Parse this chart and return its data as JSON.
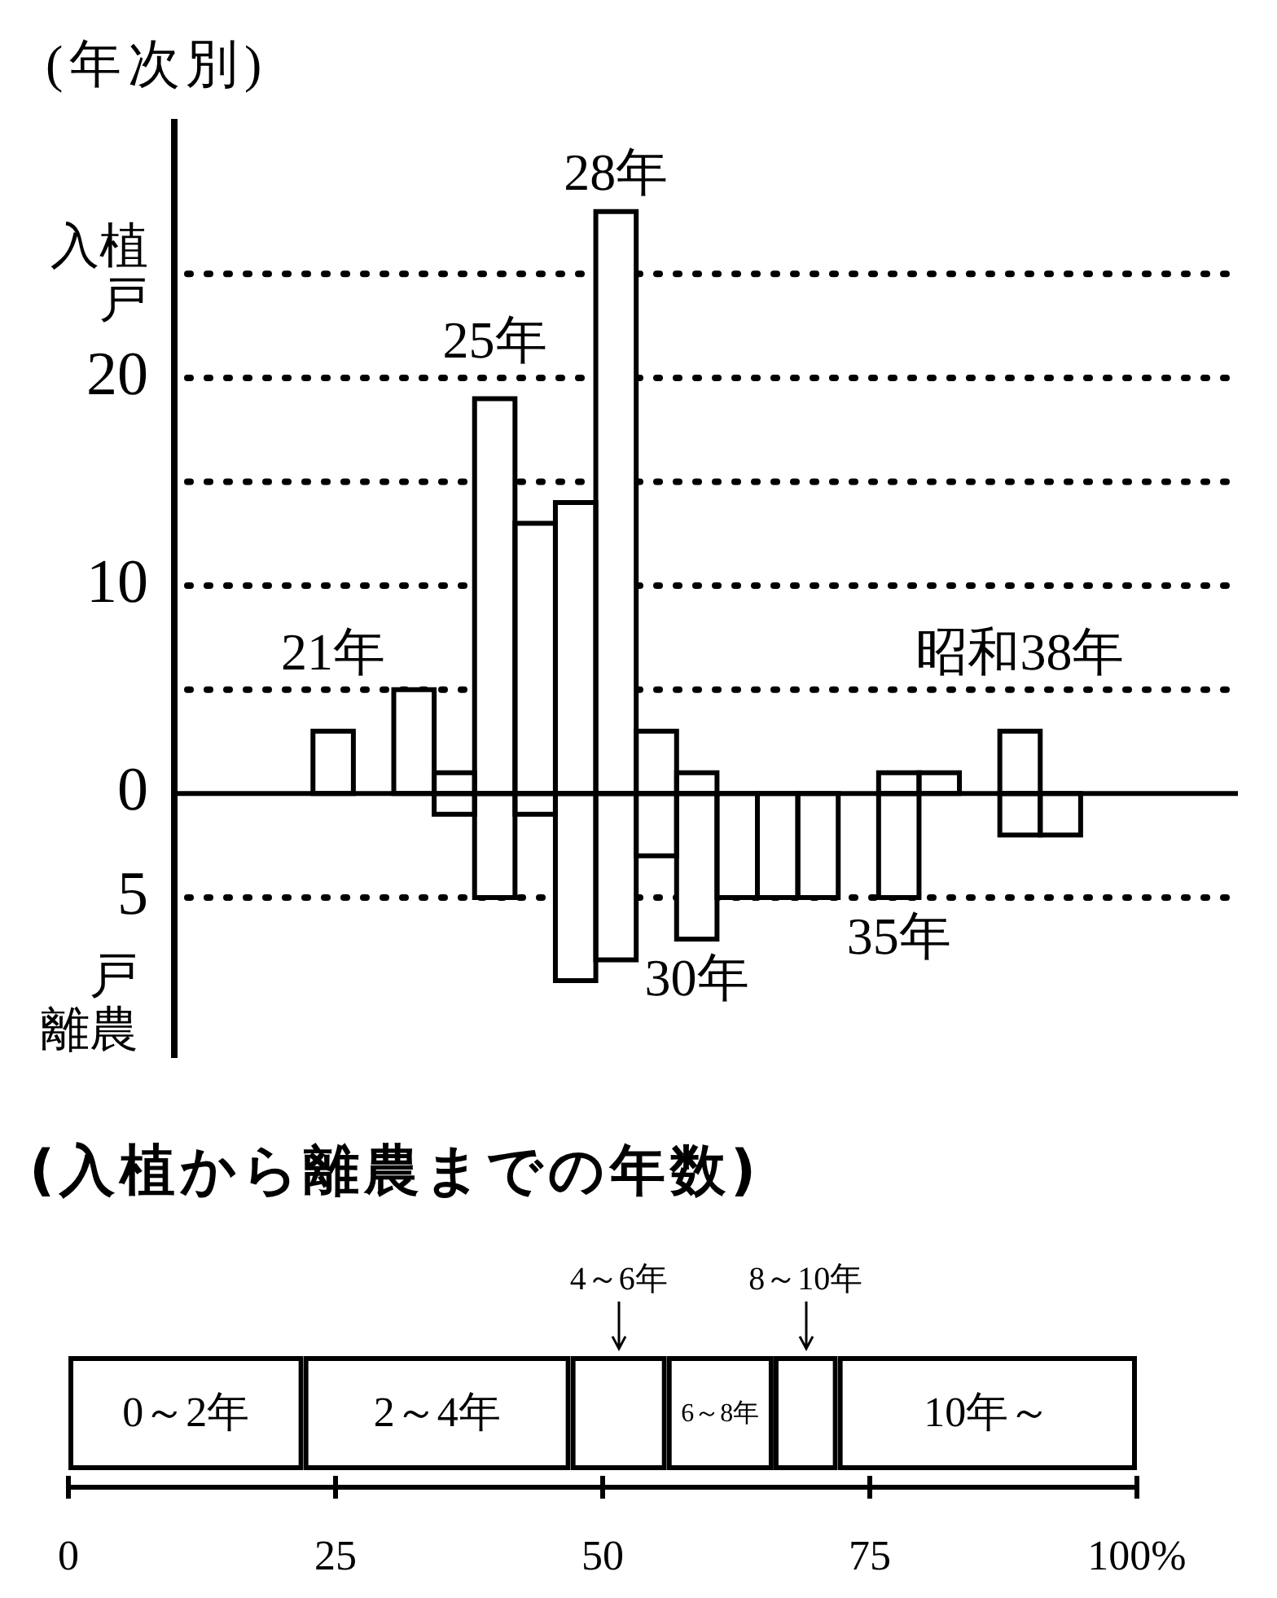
{
  "chart_data": [
    {
      "type": "bar",
      "title": "(年次別)",
      "ylabel": "入植戸",
      "annotations": [
        "戸離農"
      ],
      "stacked": true,
      "categories": [
        "21年",
        null,
        null,
        null,
        "25年",
        null,
        null,
        "28年",
        null,
        "30年",
        null,
        null,
        null,
        null,
        "35年",
        null,
        null,
        "昭和38年",
        null
      ],
      "series": [
        {
          "color": "#ffffff",
          "values": [
            3,
            null,
            5,
            1,
            19,
            13,
            14,
            28,
            3,
            1,
            null,
            null,
            null,
            null,
            1,
            1,
            null,
            3,
            null
          ]
        },
        {
          "color": "#ffffff",
          "values": [
            null,
            null,
            null,
            -1,
            -5,
            -1,
            -9,
            -8,
            -3,
            -7,
            -5,
            -5,
            -5,
            null,
            -5,
            null,
            null,
            -2,
            -2
          ]
        }
      ],
      "ylim": [
        -12.7,
        32.3
      ],
      "yticks": [
        {
          "value": -5,
          "label": "5"
        },
        0,
        {
          "value": 5,
          "label": null
        },
        10,
        {
          "value": 15,
          "label": null
        },
        20,
        {
          "value": 25,
          "label": null
        }
      ],
      "grid": "y"
    },
    {
      "type": "bar",
      "orientation": "horizontal",
      "stacked": true,
      "title": "(入植から離農までの年数)",
      "categories": [
        null
      ],
      "series": [
        {
          "name": "0～2年",
          "color": "#000000",
          "values": [
            22
          ]
        },
        {
          "name": "2～4年",
          "color": "#000000",
          "values": [
            25
          ]
        },
        {
          "name": "4～6年",
          "color": "#000000",
          "values": [
            9
          ]
        },
        {
          "name": "6～8年",
          "color": "#000000",
          "values": [
            10
          ]
        },
        {
          "name": "8～10年",
          "color": "#000000",
          "values": [
            6
          ]
        },
        {
          "name": "10年～",
          "color": "#000000",
          "values": [
            28
          ]
        }
      ],
      "xlim": [
        0,
        100
      ],
      "xticks": [
        0,
        25,
        50,
        75,
        {
          "value": 100,
          "label": "100%"
        }
      ]
    }
  ]
}
